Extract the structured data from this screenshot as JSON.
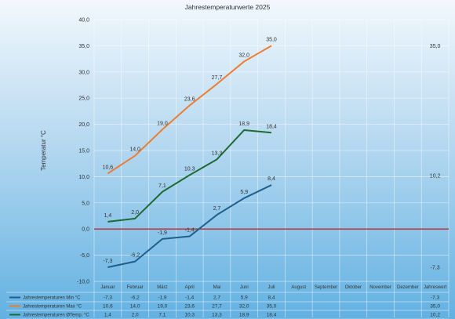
{
  "chart_data": {
    "type": "line",
    "title": "Jahrestemperaturwerte 2025",
    "ylabel": "Temperatur °C",
    "xlabel": "",
    "ylim": [
      -10,
      40
    ],
    "yticks": [
      "-10,0",
      "-5,0",
      "0,0",
      "5,0",
      "10,0",
      "15,0",
      "20,0",
      "25,0",
      "30,0",
      "35,0",
      "40,0"
    ],
    "categories": [
      "Januar",
      "Februar",
      "März",
      "April",
      "Mai",
      "Juni",
      "Juli",
      "August",
      "September",
      "Oktober",
      "November",
      "Dezember",
      "Jahreswert"
    ],
    "grid": true,
    "legend_placement": "bottom-table",
    "zero_line_color": "#c0272d",
    "series": [
      {
        "name": "Jahrestemperaturen Min °C",
        "color": "#1f5f8b",
        "values": [
          -7.3,
          -6.2,
          -1.9,
          -1.4,
          2.7,
          5.9,
          8.4,
          null,
          null,
          null,
          null,
          null,
          null
        ],
        "labels": [
          "-7,3",
          "-6,2",
          "-1,9",
          "-1,4",
          "2,7",
          "5,9",
          "8,4",
          "",
          "",
          "",
          "",
          "",
          ""
        ],
        "annual": -7.3,
        "annual_label": "-7,3"
      },
      {
        "name": "Jahrestemperaturen Max °C",
        "color": "#ed7d31",
        "values": [
          10.6,
          14.0,
          19.0,
          23.6,
          27.7,
          32.0,
          35.0,
          null,
          null,
          null,
          null,
          null,
          null
        ],
        "labels": [
          "10,6",
          "14,0",
          "19,0",
          "23,6",
          "27,7",
          "32,0",
          "35,0",
          "",
          "",
          "",
          "",
          "",
          ""
        ],
        "annual": 35.0,
        "annual_label": "35,0"
      },
      {
        "name": "Jahrestemperaturen ØTemp. °C",
        "color": "#1e6b34",
        "values": [
          1.4,
          2.0,
          7.1,
          10.3,
          13.3,
          18.9,
          18.4,
          null,
          null,
          null,
          null,
          null,
          null
        ],
        "labels": [
          "1,4",
          "2,0",
          "7,1",
          "10,3",
          "13,3",
          "18,9",
          "18,4",
          "",
          "",
          "",
          "",
          "",
          ""
        ],
        "annual": 10.2,
        "annual_label": "10,2"
      }
    ]
  }
}
